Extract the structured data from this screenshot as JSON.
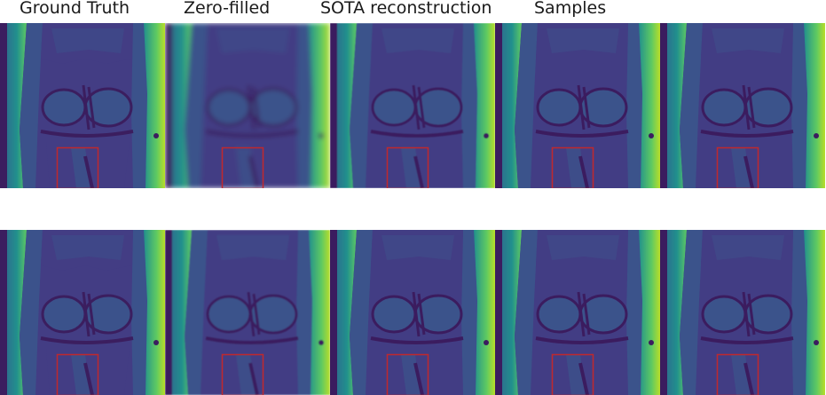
{
  "figure": {
    "column_titles": [
      "Ground Truth",
      "Zero-filled",
      "SOTA reconstruction",
      "Samples",
      ""
    ],
    "colormap": "viridis",
    "roi_box_color": "#c0282d",
    "rows": [
      {
        "name": "row-1",
        "tiles": [
          {
            "label": "ground-truth",
            "blur": 0
          },
          {
            "label": "zero-filled",
            "blur": 2.6
          },
          {
            "label": "sota-reconstruction",
            "blur": 0.6
          },
          {
            "label": "sample-1",
            "blur": 0.2
          },
          {
            "label": "sample-2",
            "blur": 0.2
          }
        ]
      },
      {
        "name": "row-2",
        "tiles": [
          {
            "label": "ground-truth",
            "blur": 0
          },
          {
            "label": "zero-filled",
            "blur": 0.9
          },
          {
            "label": "sota-reconstruction",
            "blur": 0.3
          },
          {
            "label": "sample-1",
            "blur": 0.2
          },
          {
            "label": "sample-2",
            "blur": 0.2
          }
        ]
      }
    ]
  }
}
